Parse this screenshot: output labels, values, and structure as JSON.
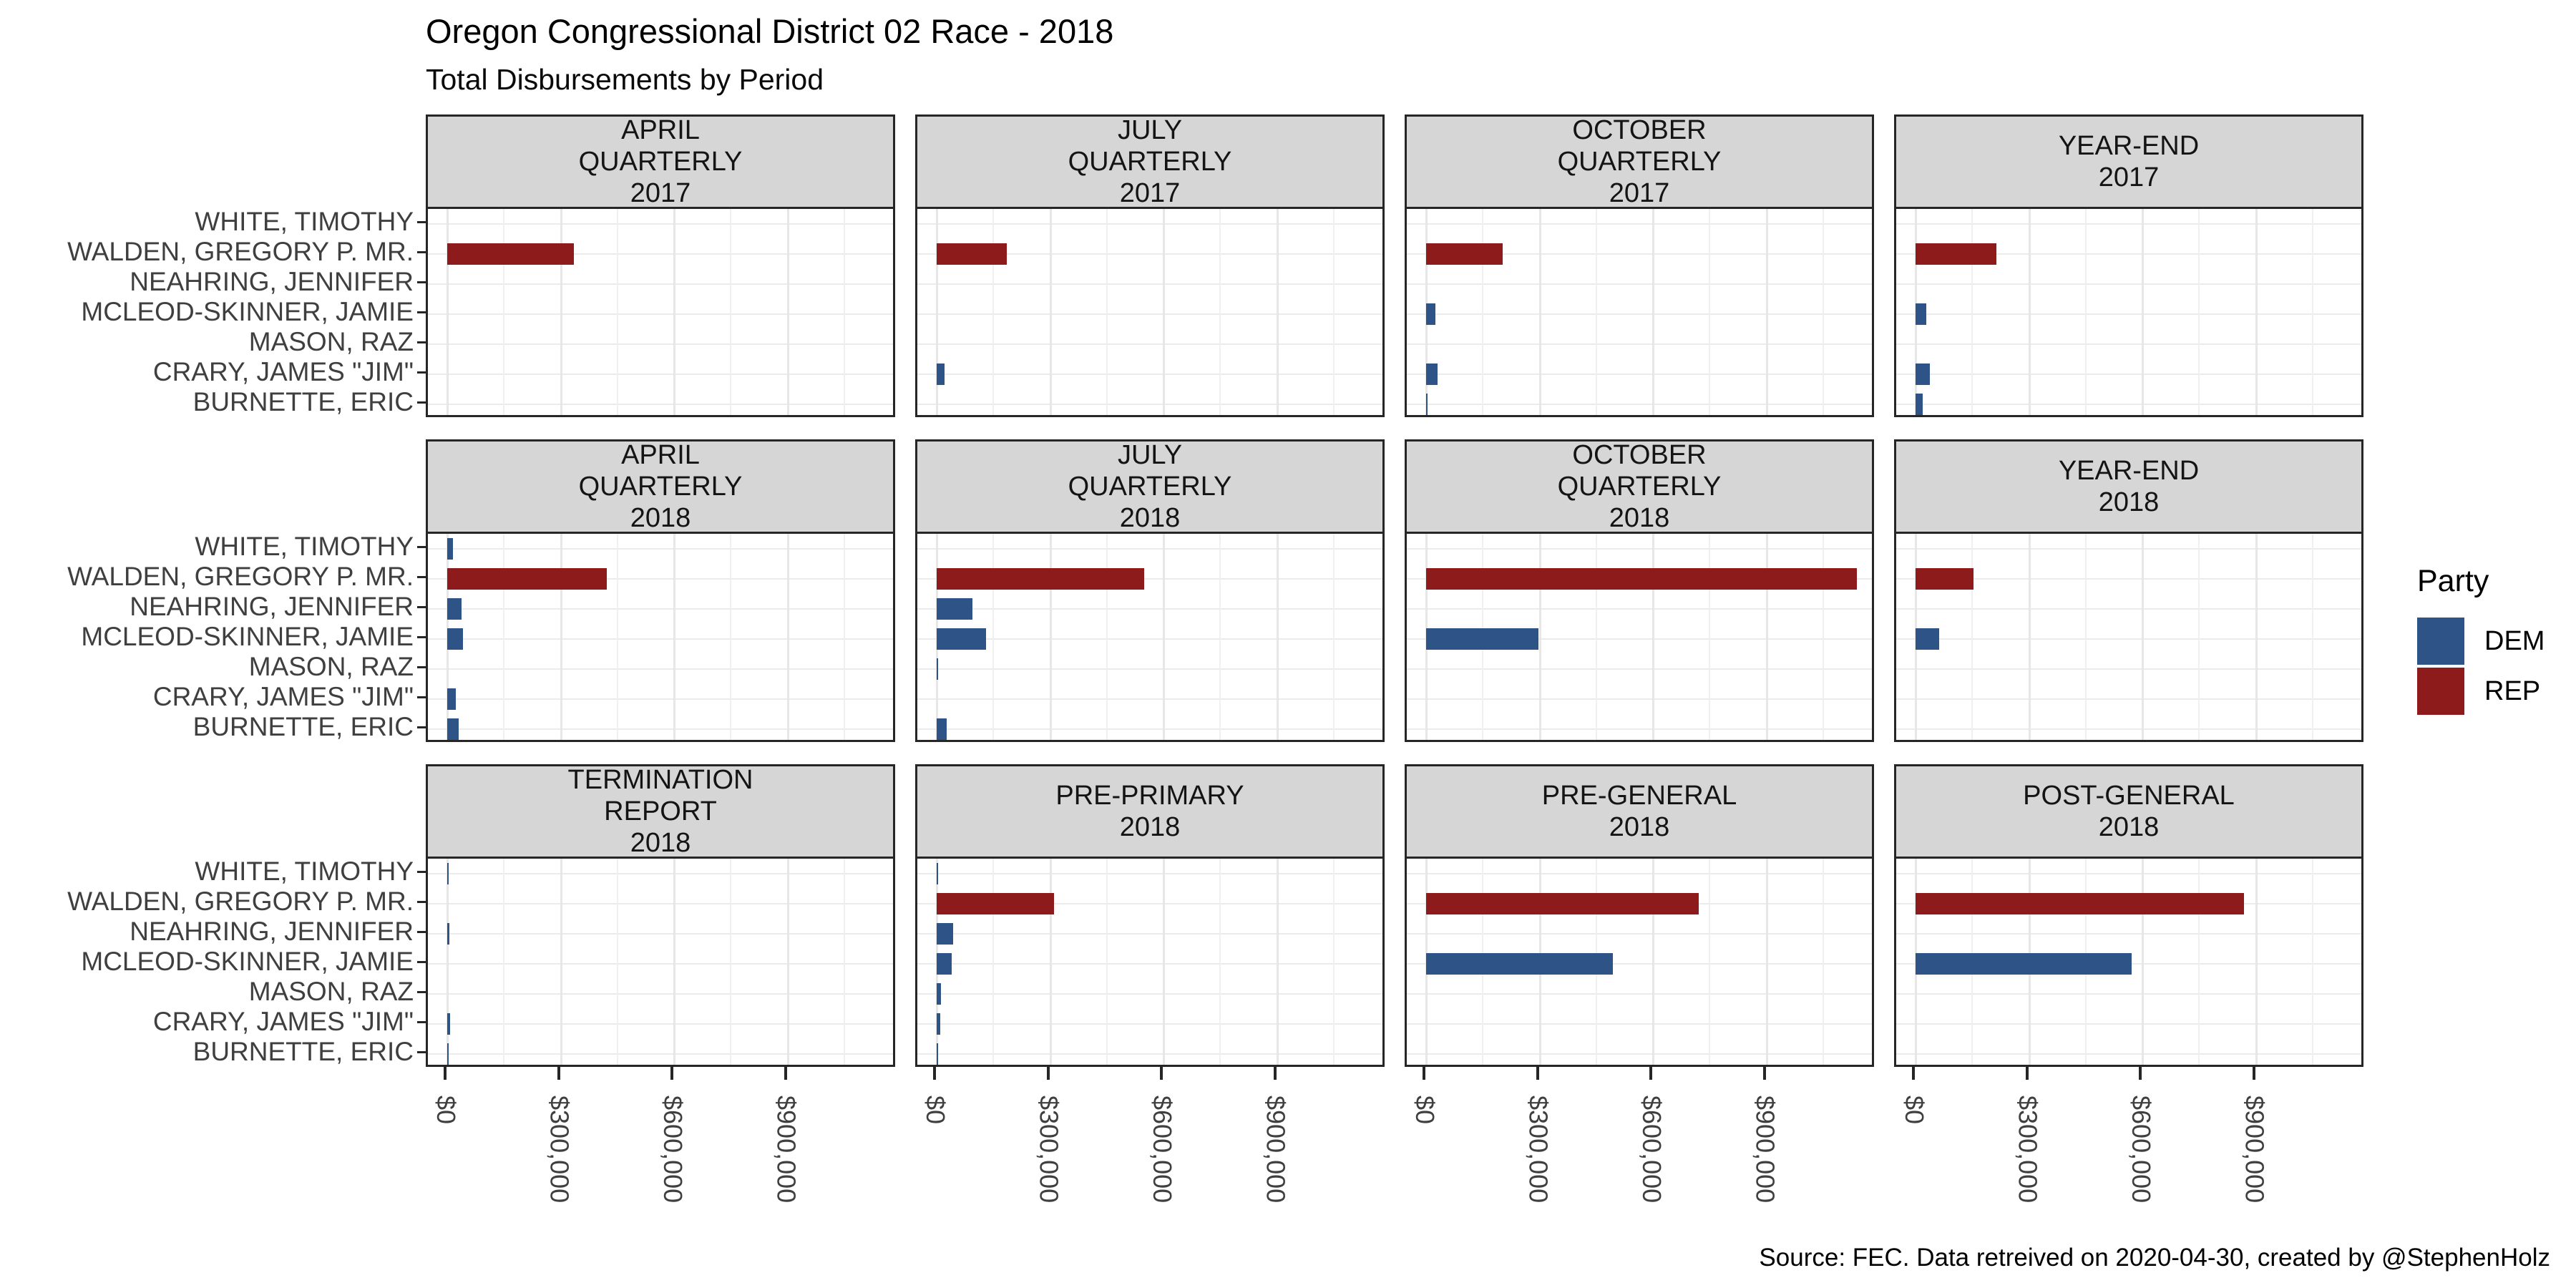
{
  "header": {
    "title": "Oregon Congressional District 02 Race - 2018",
    "subtitle": "Total Disbursements by Period"
  },
  "caption": "Source: FEC. Data retreived on 2020-04-30, created by @StephenHolz",
  "legend": {
    "title": "Party",
    "entries": [
      {
        "label": "DEM",
        "color": "#2e5487"
      },
      {
        "label": "REP",
        "color": "#8e1b1b"
      }
    ]
  },
  "chart_data": {
    "type": "bar",
    "orientation": "horizontal",
    "title": "Oregon Congressional District 02 Race - 2018",
    "subtitle": "Total Disbursements by Period",
    "xlabel": "",
    "ylabel": "",
    "grid": true,
    "legend_position": "right",
    "facet_grid": {
      "rows": 3,
      "cols": 4
    },
    "categories": [
      "WHITE, TIMOTHY",
      "WALDEN, GREGORY P. MR.",
      "NEAHRING, JENNIFER",
      "MCLEOD-SKINNER, JAMIE",
      "MASON, RAZ",
      "CRARY, JAMES \"JIM\"",
      "BURNETTE, ERIC"
    ],
    "category_party": [
      "DEM",
      "REP",
      "DEM",
      "DEM",
      "DEM",
      "DEM",
      "DEM"
    ],
    "colors": {
      "DEM": "#2e5487",
      "REP": "#8e1b1b"
    },
    "x_axis": {
      "tick_labels": [
        "$0",
        "$300,000",
        "$600,000",
        "$900,000"
      ],
      "tick_values": [
        0,
        300000,
        600000,
        900000
      ],
      "minor_step": 150000,
      "xlim": [
        0,
        1190000
      ]
    },
    "facets": [
      {
        "label": "APRIL QUARTERLY 2017",
        "label_lines": [
          "APRIL",
          "QUARTERLY",
          "2017"
        ],
        "values": [
          0,
          335000,
          0,
          0,
          0,
          0,
          0
        ]
      },
      {
        "label": "JULY QUARTERLY 2017",
        "label_lines": [
          "JULY",
          "QUARTERLY",
          "2017"
        ],
        "values": [
          0,
          185000,
          0,
          0,
          0,
          20000,
          0
        ]
      },
      {
        "label": "OCTOBER QUARTERLY 2017",
        "label_lines": [
          "OCTOBER",
          "QUARTERLY",
          "2017"
        ],
        "values": [
          0,
          202000,
          0,
          24000,
          0,
          30000,
          2000
        ]
      },
      {
        "label": "YEAR-END 2017",
        "label_lines": [
          "YEAR-END",
          "2017"
        ],
        "values": [
          0,
          214000,
          0,
          29000,
          0,
          38000,
          18000
        ]
      },
      {
        "label": "APRIL QUARTERLY 2018",
        "label_lines": [
          "APRIL",
          "QUARTERLY",
          "2018"
        ],
        "values": [
          15000,
          423000,
          38000,
          41000,
          0,
          23000,
          30000
        ]
      },
      {
        "label": "JULY QUARTERLY 2018",
        "label_lines": [
          "JULY",
          "QUARTERLY",
          "2018"
        ],
        "values": [
          0,
          548000,
          94000,
          131000,
          3000,
          0,
          27000
        ]
      },
      {
        "label": "OCTOBER QUARTERLY 2018",
        "label_lines": [
          "OCTOBER",
          "QUARTERLY",
          "2018"
        ],
        "values": [
          0,
          1140000,
          0,
          297000,
          0,
          0,
          0
        ]
      },
      {
        "label": "YEAR-END 2018",
        "label_lines": [
          "YEAR-END",
          "2018"
        ],
        "values": [
          0,
          153000,
          0,
          63000,
          0,
          0,
          0
        ]
      },
      {
        "label": "TERMINATION REPORT 2018",
        "label_lines": [
          "TERMINATION",
          "REPORT",
          "2018"
        ],
        "values": [
          1000,
          0,
          5000,
          0,
          0,
          7000,
          1500
        ]
      },
      {
        "label": "PRE-PRIMARY 2018",
        "label_lines": [
          "PRE-PRIMARY",
          "2018"
        ],
        "values": [
          4000,
          310000,
          43000,
          40000,
          12000,
          10000,
          1000
        ]
      },
      {
        "label": "PRE-GENERAL 2018",
        "label_lines": [
          "PRE-GENERAL",
          "2018"
        ],
        "values": [
          0,
          721000,
          0,
          494000,
          0,
          0,
          0
        ]
      },
      {
        "label": "POST-GENERAL 2018",
        "label_lines": [
          "POST-GENERAL",
          "2018"
        ],
        "values": [
          0,
          868000,
          0,
          572000,
          0,
          0,
          0
        ]
      }
    ]
  }
}
